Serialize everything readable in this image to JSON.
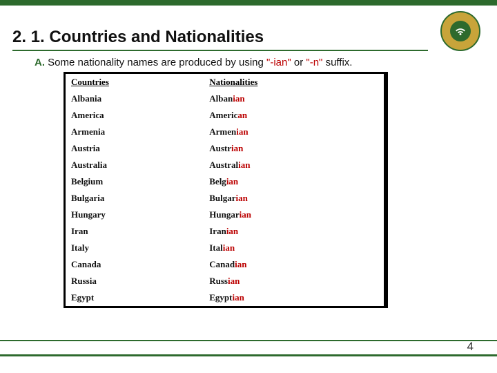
{
  "title": "2. 1. Countries and Nationalities",
  "subtitle": {
    "lead": "A.",
    "body": "Some nationality names are produced by using",
    "suffix1": "\"-ian\"",
    "mid": "or",
    "suffix2": "\"-n\"",
    "tail": "suffix."
  },
  "headers": {
    "countries": "Countries",
    "nationalities": "Nationalities"
  },
  "rows": [
    {
      "country": "Albania",
      "base": "Alban",
      "suffix": "ian"
    },
    {
      "country": "America",
      "base": "Americ",
      "suffix": "an"
    },
    {
      "country": "Armenia",
      "base": "Armen",
      "suffix": "ian"
    },
    {
      "country": "Austria",
      "base": "Austr",
      "suffix": "ian"
    },
    {
      "country": "Australia",
      "base": "Austral",
      "suffix": "ian"
    },
    {
      "country": "Belgium",
      "base": "Belg",
      "suffix": "ian"
    },
    {
      "country": "Bulgaria",
      "base": "Bulgar",
      "suffix": "ian"
    },
    {
      "country": "Hungary",
      "base": "Hungar",
      "suffix": "ian"
    },
    {
      "country": "Iran",
      "base": "Iran",
      "suffix": "ian"
    },
    {
      "country": "Italy",
      "base": "Ital",
      "suffix": "ian"
    },
    {
      "country": "Canada",
      "base": "Canad",
      "suffix": "ian"
    },
    {
      "country": "Russia",
      "base": "Russ",
      "suffix": "ian"
    },
    {
      "country": "Egypt",
      "base": "Egypt",
      "suffix": "ian"
    }
  ],
  "pageNumber": "4",
  "colors": {
    "accent": "#2d6a2d",
    "highlight": "#b00000",
    "gold": "#c8a43a"
  }
}
